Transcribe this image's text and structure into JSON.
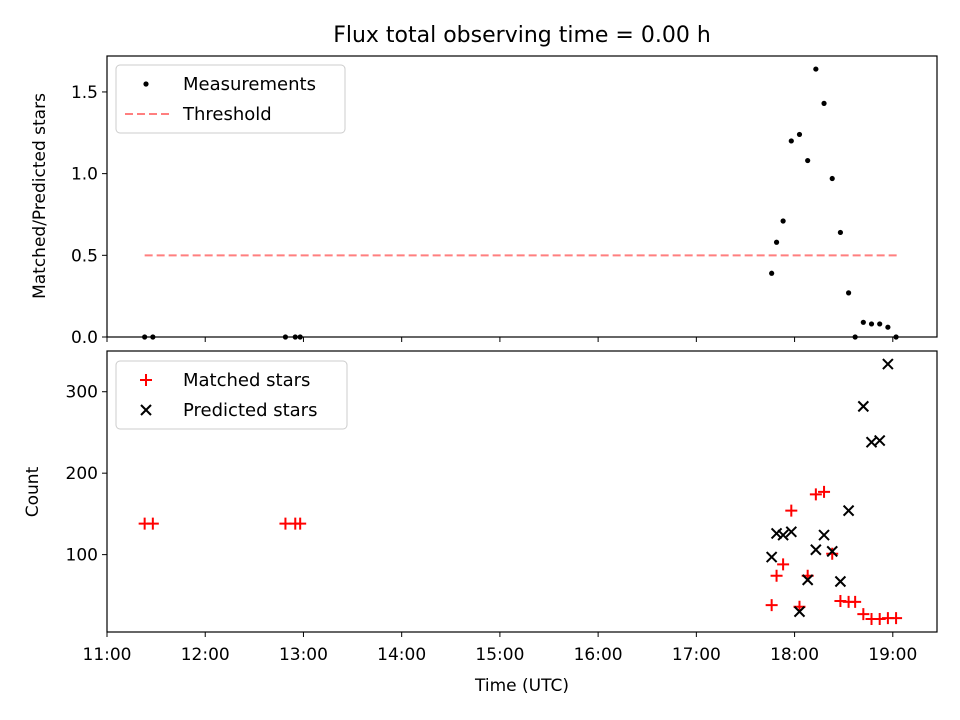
{
  "chart_data": {
    "title": "Flux total observing time = 0.00 h",
    "xlabel": "Time (UTC)",
    "x_ticks": [
      "11:00",
      "12:00",
      "13:00",
      "14:00",
      "15:00",
      "16:00",
      "17:00",
      "18:00",
      "19:00"
    ],
    "xlim_hours": [
      11.0,
      19.45
    ],
    "panels": [
      {
        "type": "scatter",
        "ylabel": "Matched/Predicted stars",
        "ylim": [
          0,
          1.72
        ],
        "y_ticks": [
          0.0,
          0.5,
          1.0,
          1.5
        ],
        "y_tick_labels": [
          "0.0",
          "0.5",
          "1.0",
          "1.5"
        ],
        "legend_position": "upper-left",
        "series": [
          {
            "name": "Measurements",
            "marker": "dot",
            "color": "#000000",
            "points": [
              [
                "11:23",
                0.0
              ],
              [
                "11:28",
                0.0
              ],
              [
                "12:49",
                0.0
              ],
              [
                "12:55",
                0.0
              ],
              [
                "12:58",
                0.0
              ],
              [
                "17:46",
                0.39
              ],
              [
                "17:49",
                0.58
              ],
              [
                "17:53",
                0.71
              ],
              [
                "17:58",
                1.2
              ],
              [
                "18:03",
                1.24
              ],
              [
                "18:08",
                1.08
              ],
              [
                "18:13",
                1.64
              ],
              [
                "18:18",
                1.43
              ],
              [
                "18:23",
                0.97
              ],
              [
                "18:28",
                0.64
              ],
              [
                "18:33",
                0.27
              ],
              [
                "18:37",
                0.0
              ],
              [
                "18:42",
                0.09
              ],
              [
                "18:47",
                0.08
              ],
              [
                "18:52",
                0.08
              ],
              [
                "18:57",
                0.06
              ],
              [
                "19:02",
                0.0
              ]
            ]
          },
          {
            "name": "Threshold",
            "style": "dashed-line",
            "color": "#ff7f7f",
            "points": [
              [
                "11:23",
                0.5
              ],
              [
                "19:04",
                0.5
              ]
            ]
          }
        ]
      },
      {
        "type": "scatter",
        "ylabel": "Count",
        "ylim": [
          5,
          350
        ],
        "y_ticks": [
          100,
          200,
          300
        ],
        "y_tick_labels": [
          "100",
          "200",
          "300"
        ],
        "legend_position": "upper-left",
        "series": [
          {
            "name": "Matched stars",
            "marker": "plus",
            "color": "#ff0000",
            "points": [
              [
                "11:23",
                138
              ],
              [
                "11:28",
                138
              ],
              [
                "12:49",
                138
              ],
              [
                "12:55",
                138
              ],
              [
                "12:58",
                138
              ],
              [
                "17:46",
                38
              ],
              [
                "17:49",
                74
              ],
              [
                "17:53",
                88
              ],
              [
                "17:58",
                154
              ],
              [
                "18:03",
                36
              ],
              [
                "18:08",
                74
              ],
              [
                "18:13",
                174
              ],
              [
                "18:18",
                177
              ],
              [
                "18:23",
                101
              ],
              [
                "18:28",
                43
              ],
              [
                "18:33",
                42
              ],
              [
                "18:37",
                42
              ],
              [
                "18:42",
                27
              ],
              [
                "18:47",
                21
              ],
              [
                "18:52",
                21
              ],
              [
                "18:57",
                22
              ],
              [
                "19:02",
                22
              ]
            ]
          },
          {
            "name": "Predicted stars",
            "marker": "x",
            "color": "#000000",
            "points": [
              [
                "17:46",
                97
              ],
              [
                "17:49",
                126
              ],
              [
                "17:53",
                124
              ],
              [
                "17:58",
                128
              ],
              [
                "18:03",
                30
              ],
              [
                "18:08",
                69
              ],
              [
                "18:13",
                106
              ],
              [
                "18:18",
                124
              ],
              [
                "18:23",
                104
              ],
              [
                "18:28",
                67
              ],
              [
                "18:33",
                154
              ],
              [
                "18:42",
                282
              ],
              [
                "18:47",
                238
              ],
              [
                "18:52",
                240
              ],
              [
                "18:57",
                334
              ]
            ]
          }
        ]
      }
    ]
  }
}
